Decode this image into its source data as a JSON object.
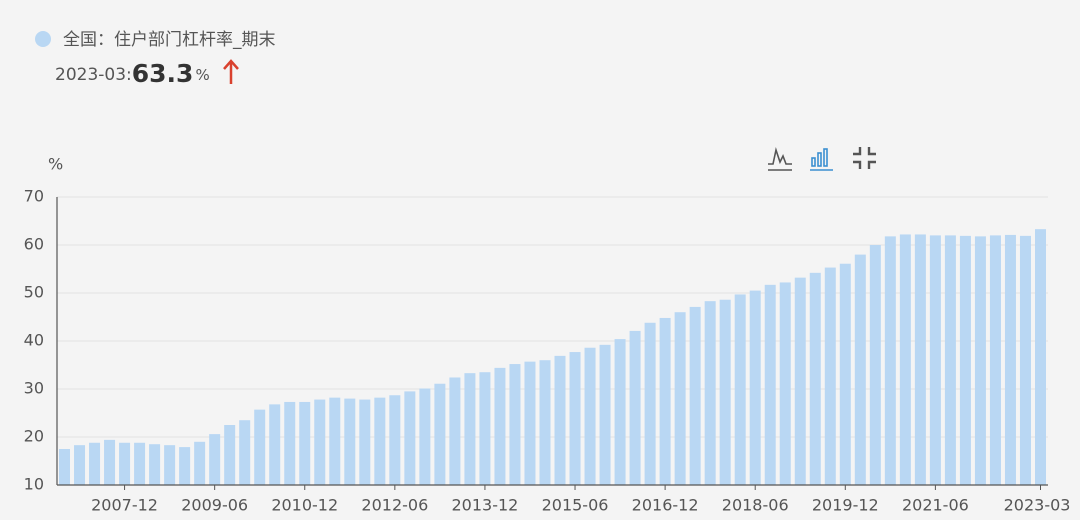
{
  "chart_data": {
    "type": "bar",
    "latest_period": "2023-03:",
    "latest_value": 63.3,
    "latest_unit": "%",
    "y_unit": "%",
    "categories": [
      null,
      null,
      null,
      null,
      "2007-12",
      null,
      null,
      null,
      null,
      null,
      "2009-06",
      null,
      null,
      null,
      null,
      null,
      "2010-12",
      null,
      null,
      null,
      null,
      null,
      "2012-06",
      null,
      null,
      null,
      null,
      null,
      "2013-12",
      null,
      null,
      null,
      null,
      null,
      "2015-06",
      null,
      null,
      null,
      null,
      null,
      "2016-12",
      null,
      null,
      null,
      null,
      null,
      "2018-06",
      null,
      null,
      null,
      null,
      null,
      "2019-12",
      null,
      null,
      null,
      null,
      null,
      "2021-06",
      null,
      null,
      null,
      null,
      null,
      null,
      "2023-03"
    ],
    "series": [
      {
        "name": "全国：住户部门杠杆率_期末",
        "color": "#b9d7f3",
        "values": [
          17.5,
          18.3,
          18.8,
          19.4,
          18.8,
          18.8,
          18.5,
          18.3,
          17.9,
          19.0,
          20.6,
          22.5,
          23.5,
          25.7,
          26.8,
          27.3,
          27.3,
          27.8,
          28.2,
          28.0,
          27.8,
          28.2,
          28.7,
          29.5,
          30.1,
          31.1,
          32.4,
          33.3,
          33.5,
          34.4,
          35.2,
          35.7,
          36.0,
          36.9,
          37.7,
          38.6,
          39.2,
          40.4,
          42.1,
          43.8,
          44.8,
          46.0,
          47.1,
          48.3,
          48.6,
          49.7,
          50.5,
          51.7,
          52.2,
          53.2,
          54.2,
          55.3,
          56.1,
          58.0,
          60.0,
          61.8,
          62.2,
          62.2,
          62.0,
          62.0,
          61.9,
          61.8,
          62.0,
          62.1,
          61.9,
          63.3
        ]
      }
    ],
    "ylim": [
      10,
      70
    ],
    "yticks": [
      10,
      20,
      30,
      40,
      50,
      60,
      70
    ],
    "grid": true
  }
}
